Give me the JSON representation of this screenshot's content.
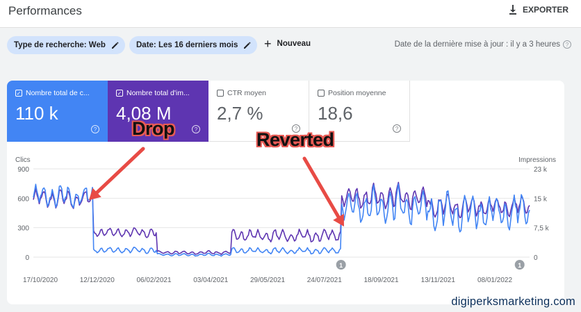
{
  "header": {
    "title": "Performances",
    "export_label": "EXPORTER"
  },
  "filters": {
    "chips": [
      {
        "label": "Type de recherche: Web"
      },
      {
        "label": "Date: Les 16 derniers mois"
      }
    ],
    "new_label": "Nouveau",
    "last_update": "Date de la dernière mise à jour : il y a 3 heures"
  },
  "metrics": [
    {
      "label": "Nombre total de c...",
      "value": "110 k",
      "checked": true,
      "color": "#4285f4"
    },
    {
      "label": "Nombre total d'im...",
      "value": "4,08 M",
      "checked": true,
      "color": "#5e35b1"
    },
    {
      "label": "CTR moyen",
      "value": "2,7 %",
      "checked": false
    },
    {
      "label": "Position moyenne",
      "value": "18,6",
      "checked": false
    }
  ],
  "annotations": {
    "drop": "Drop",
    "reverted": "Reverted"
  },
  "watermark": "digiperksmarketing.com",
  "chart_data": {
    "type": "line",
    "ylabel_left": "Clics",
    "ylabel_right": "Impressions",
    "y_left_ticks": [
      "900",
      "600",
      "300",
      "0"
    ],
    "y_right_ticks": [
      "23 k",
      "15 k",
      "7,5 k",
      "0"
    ],
    "ylim_left": [
      0,
      900
    ],
    "ylim_right": [
      0,
      23000
    ],
    "x_ticks": [
      "17/10/2020",
      "12/12/2020",
      "06/02/2021",
      "03/04/2021",
      "29/05/2021",
      "24/07/2021",
      "18/09/2021",
      "13/11/2021",
      "08/01/2022"
    ],
    "event_markers": [
      "1",
      "1"
    ],
    "grid": true,
    "series": [
      {
        "name": "Clics",
        "color": "#4285f4",
        "segments": [
          {
            "x_range": [
              0,
              12
            ],
            "base": 620,
            "amp": 130
          },
          {
            "x_range": [
              12,
              25
            ],
            "base": 70,
            "amp": 35
          },
          {
            "x_range": [
              25,
              40
            ],
            "base": 25,
            "amp": 15
          },
          {
            "x_range": [
              40,
              62
            ],
            "base": 65,
            "amp": 35
          },
          {
            "x_range": [
              62,
              80
            ],
            "base": 520,
            "amp": 210
          },
          {
            "x_range": [
              80,
              100
            ],
            "base": 460,
            "amp": 220
          }
        ]
      },
      {
        "name": "Impressions",
        "color": "#5e35b1",
        "segments": [
          {
            "x_range": [
              0,
              12
            ],
            "base": 15200,
            "amp": 2800
          },
          {
            "x_range": [
              12,
              25
            ],
            "base": 6400,
            "amp": 1400
          },
          {
            "x_range": [
              25,
              40
            ],
            "base": 1200,
            "amp": 500
          },
          {
            "x_range": [
              40,
              62
            ],
            "base": 5600,
            "amp": 1800
          },
          {
            "x_range": [
              62,
              80
            ],
            "base": 15600,
            "amp": 3600
          },
          {
            "x_range": [
              80,
              100
            ],
            "base": 13200,
            "amp": 3200
          }
        ]
      }
    ]
  }
}
